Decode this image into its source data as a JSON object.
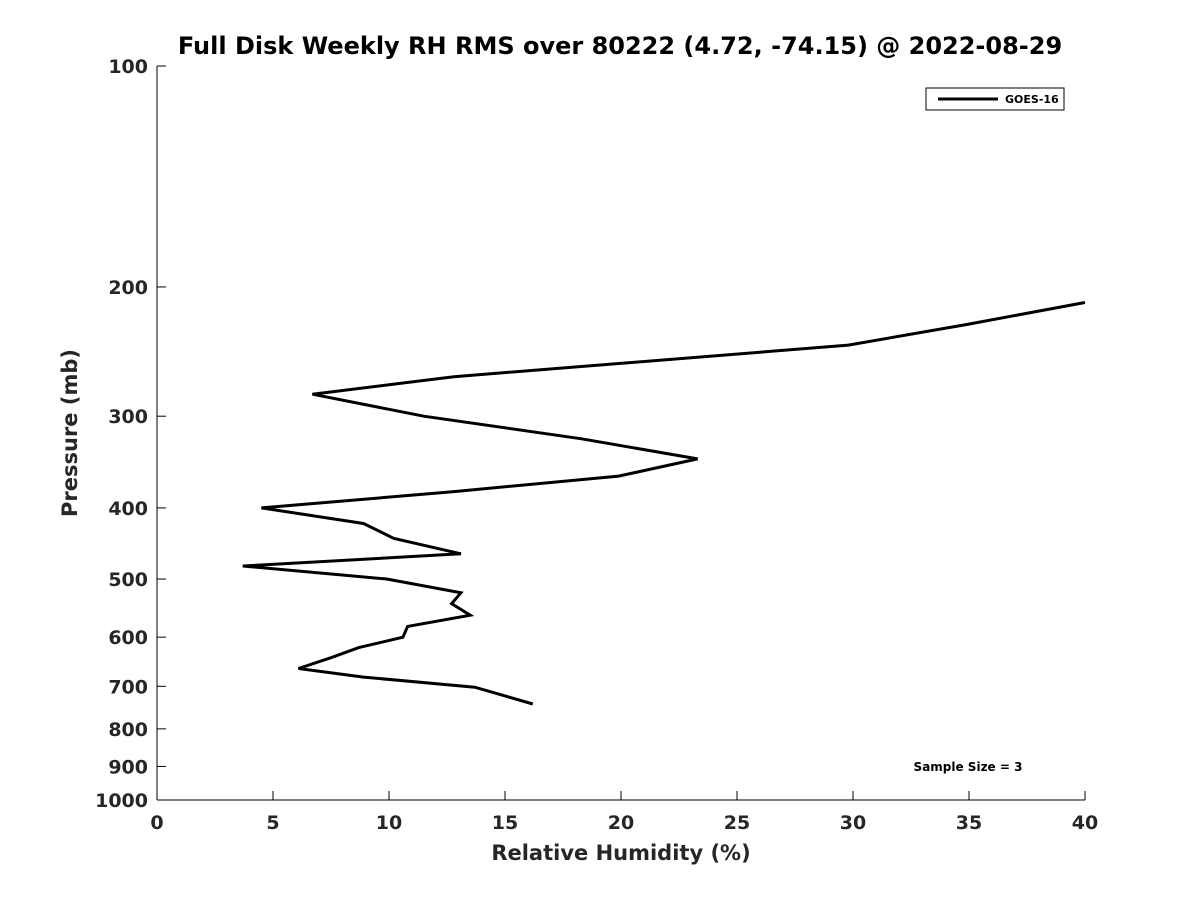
{
  "chart_data": {
    "type": "line",
    "title": "Full Disk Weekly RH RMS over 80222 (4.72, -74.15) @ 2022-08-29",
    "xlabel": "Relative Humidity (%)",
    "ylabel": "Pressure (mb)",
    "xlim": [
      0,
      40
    ],
    "ylim": [
      1000,
      100
    ],
    "yscale": "log",
    "y_reversed": true,
    "xticks": [
      0,
      5,
      10,
      15,
      20,
      25,
      30,
      35,
      40
    ],
    "yticks": [
      100,
      200,
      300,
      400,
      500,
      600,
      700,
      800,
      900,
      1000
    ],
    "grid": false,
    "legend_position": "top-right",
    "series": [
      {
        "name": "GOES-16",
        "color": "#000000",
        "x": [
          40.0,
          34.9,
          29.8,
          12.8,
          6.7,
          11.5,
          18.3,
          23.3,
          19.9,
          12.8,
          4.5,
          8.9,
          10.2,
          13.1,
          3.7,
          9.9,
          13.1,
          12.7,
          13.5,
          10.8,
          10.6,
          8.7,
          7.5,
          6.1,
          8.9,
          13.7,
          16.2
        ],
        "y": [
          210,
          225,
          240,
          265,
          280,
          300,
          322,
          343,
          362,
          380,
          400,
          420,
          440,
          462,
          480,
          500,
          522,
          540,
          560,
          580,
          600,
          620,
          640,
          662,
          680,
          702,
          740
        ]
      }
    ],
    "annotations": [
      "Sample Size = 3"
    ]
  }
}
